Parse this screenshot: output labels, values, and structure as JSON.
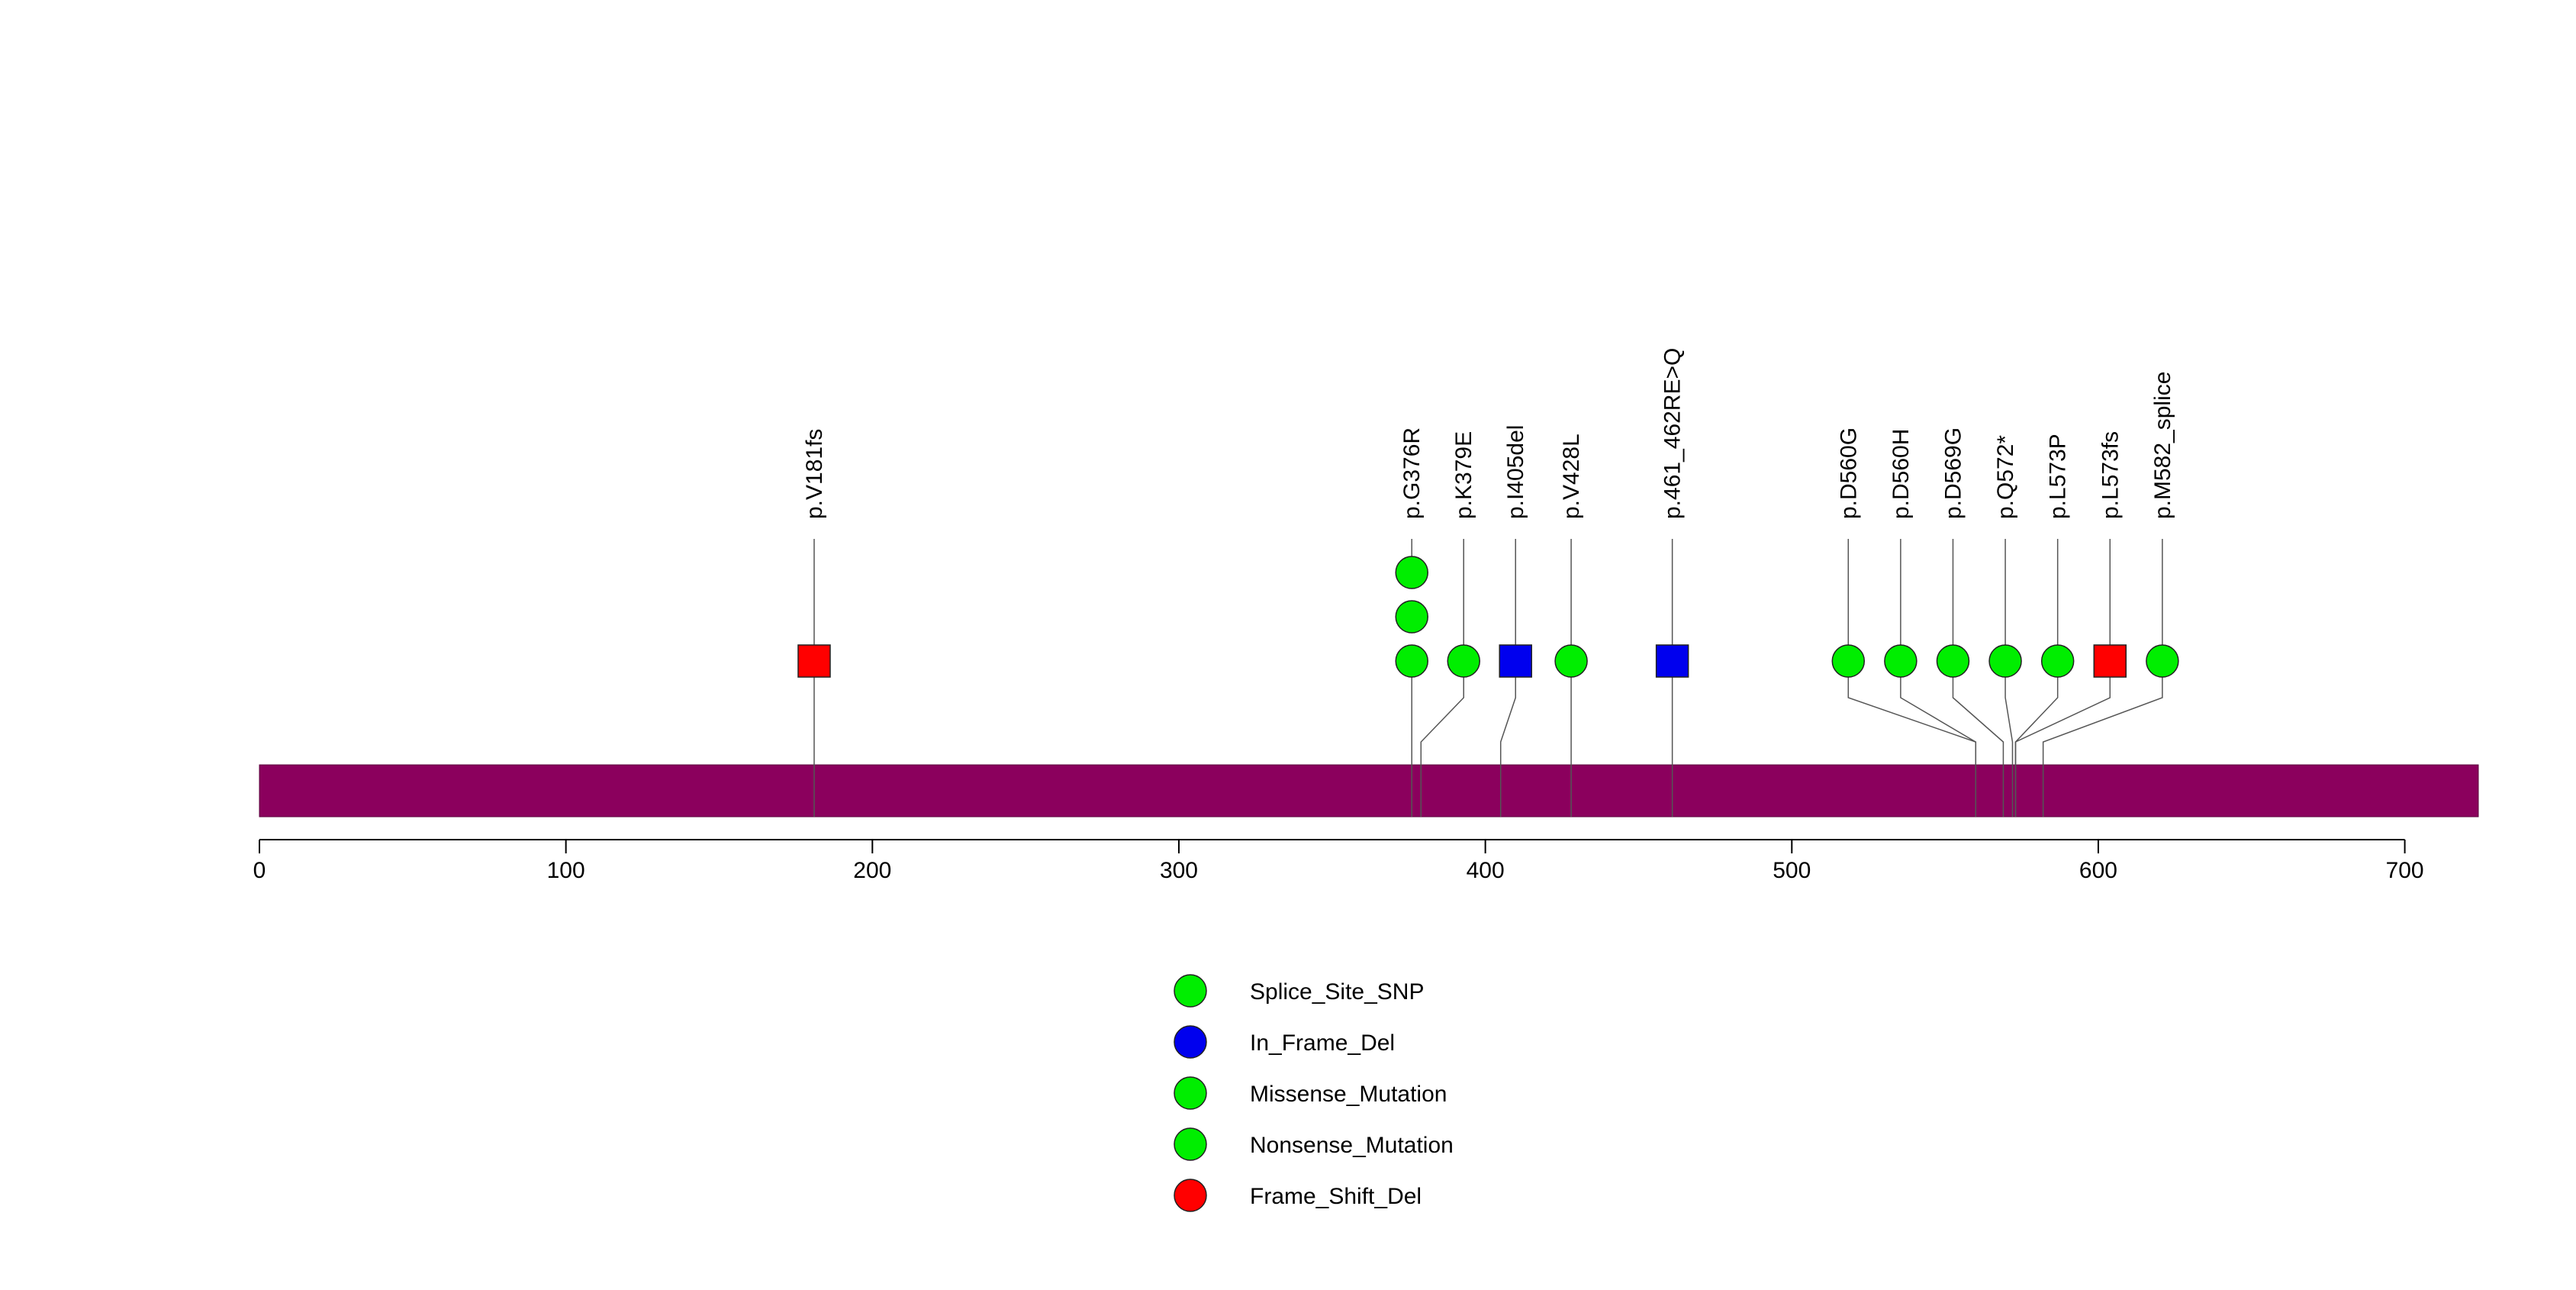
{
  "chart_data": {
    "type": "lollipop",
    "title": "",
    "xlabel": "",
    "ylabel": "",
    "protein_length": 724,
    "xlim": [
      0,
      724
    ],
    "x_ticks": [
      0,
      100,
      200,
      300,
      400,
      500,
      600,
      700
    ],
    "x_tick_labels": [
      "0",
      "100",
      "200",
      "300",
      "400",
      "500",
      "600",
      "700"
    ],
    "colors": {
      "protein_bar": "#8B005D",
      "Splice_Site_SNP": "#00EE00",
      "In_Frame_Del": "#0000EE",
      "Missense_Mutation": "#00EE00",
      "Nonsense_Mutation": "#00EE00",
      "Frame_Shift_Del": "#FF0000"
    },
    "mutations": [
      {
        "label": "p.V181fs",
        "position": 181,
        "type": "Frame_Shift_Del",
        "shape": "square",
        "count": 1
      },
      {
        "label": "p.G376R",
        "position": 376,
        "type": "Missense_Mutation",
        "shape": "circle",
        "count": 3
      },
      {
        "label": "p.K379E",
        "position": 379,
        "type": "Missense_Mutation",
        "shape": "circle",
        "count": 1
      },
      {
        "label": "p.I405del",
        "position": 405,
        "type": "In_Frame_Del",
        "shape": "square",
        "count": 1
      },
      {
        "label": "p.V428L",
        "position": 428,
        "type": "Missense_Mutation",
        "shape": "circle",
        "count": 1
      },
      {
        "label": "p.461_462RE>Q",
        "position": 461,
        "type": "In_Frame_Del",
        "shape": "square",
        "count": 1
      },
      {
        "label": "p.D560G",
        "position": 560,
        "type": "Missense_Mutation",
        "shape": "circle",
        "count": 1
      },
      {
        "label": "p.D560H",
        "position": 560,
        "type": "Missense_Mutation",
        "shape": "circle",
        "count": 1
      },
      {
        "label": "p.D569G",
        "position": 569,
        "type": "Missense_Mutation",
        "shape": "circle",
        "count": 1
      },
      {
        "label": "p.Q572*",
        "position": 572,
        "type": "Nonsense_Mutation",
        "shape": "circle",
        "count": 1
      },
      {
        "label": "p.L573P",
        "position": 573,
        "type": "Missense_Mutation",
        "shape": "circle",
        "count": 1
      },
      {
        "label": "p.L573fs",
        "position": 573,
        "type": "Frame_Shift_Del",
        "shape": "square",
        "count": 1
      },
      {
        "label": "p.M582_splice",
        "position": 582,
        "type": "Splice_Site_SNP",
        "shape": "circle",
        "count": 1
      }
    ],
    "legend": {
      "placement": "bottom-center",
      "entries": [
        {
          "label": "Splice_Site_SNP",
          "color": "#00EE00"
        },
        {
          "label": "In_Frame_Del",
          "color": "#0000EE"
        },
        {
          "label": "Missense_Mutation",
          "color": "#00EE00"
        },
        {
          "label": "Nonsense_Mutation",
          "color": "#00EE00"
        },
        {
          "label": "Frame_Shift_Del",
          "color": "#FF0000"
        }
      ]
    }
  }
}
